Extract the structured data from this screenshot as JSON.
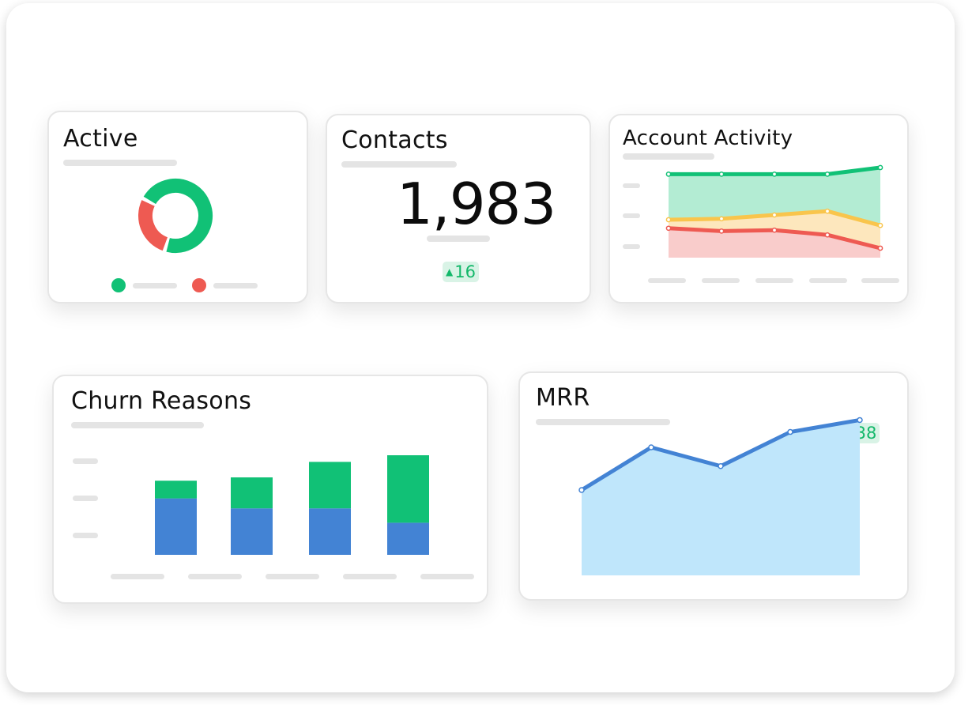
{
  "cards": {
    "active": {
      "title": "Active"
    },
    "contacts": {
      "title": "Contacts",
      "value": "1,983",
      "delta": "16"
    },
    "account_activity": {
      "title": "Account Activity"
    },
    "churn": {
      "title": "Churn Reasons"
    },
    "mrr": {
      "title": "MRR",
      "delta": "638"
    }
  },
  "colors": {
    "green": "#11c176",
    "red": "#ee5a52",
    "yellow": "#f9c54c",
    "blue": "#4383d4",
    "light_blue": "#bfe6fb",
    "badge_bg": "#d9f3e6",
    "badge_text": "#13b86a",
    "placeholder": "#e4e4e4"
  },
  "icons": {
    "delta_up": "▲"
  },
  "chart_data": [
    {
      "id": "active-donut",
      "type": "pie",
      "series": [
        {
          "color": "#11c176",
          "values": [
            0.72
          ]
        },
        {
          "color": "#ee5a52",
          "values": [
            0.28
          ]
        }
      ]
    },
    {
      "id": "account-activity",
      "type": "area",
      "x": [
        1,
        2,
        3,
        4,
        5
      ],
      "ylim": [
        0,
        100
      ],
      "series": [
        {
          "color": "#11c176",
          "values": [
            88,
            88,
            88,
            88,
            95
          ]
        },
        {
          "color": "#f9c54c",
          "values": [
            40,
            41,
            45,
            49,
            34
          ]
        },
        {
          "color": "#ee5a52",
          "values": [
            31,
            28,
            29,
            24,
            10
          ]
        }
      ]
    },
    {
      "id": "churn-reasons",
      "type": "bar",
      "stacked": true,
      "categories": [
        "1",
        "2",
        "3",
        "4"
      ],
      "ylim": [
        0,
        100
      ],
      "series": [
        {
          "color": "#4383d4",
          "values": [
            51,
            42,
            42,
            29
          ]
        },
        {
          "color": "#11c176",
          "values": [
            16,
            28,
            42,
            61
          ]
        }
      ]
    },
    {
      "id": "mrr",
      "type": "area",
      "x": [
        1,
        2,
        3,
        4,
        5
      ],
      "ylim": [
        0,
        100
      ],
      "series": [
        {
          "color": "#4383d4",
          "fill": "#bfe6fb",
          "values": [
            50,
            75,
            64,
            84,
            91
          ]
        }
      ]
    }
  ]
}
